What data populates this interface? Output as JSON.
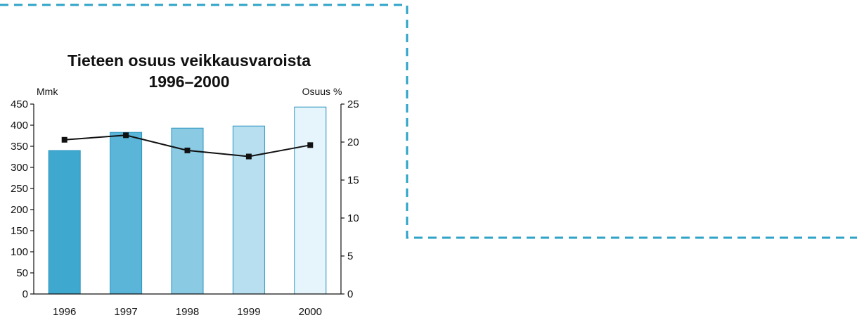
{
  "chart_data": {
    "type": "bar",
    "title_lines": [
      "Tieteen osuus veikkausvaroista",
      "1996–2000"
    ],
    "categories": [
      "1996",
      "1997",
      "1998",
      "1999",
      "2000"
    ],
    "y_left": {
      "label": "Mmk",
      "lim": [
        0,
        450
      ],
      "ticks": [
        0,
        50,
        100,
        150,
        200,
        250,
        300,
        350,
        400,
        450
      ]
    },
    "y_right": {
      "label": "Osuus %",
      "lim": [
        0,
        25
      ],
      "ticks": [
        0,
        5,
        10,
        15,
        20,
        25
      ]
    },
    "series": [
      {
        "type": "bar",
        "axis": "left",
        "values": [
          340,
          383,
          393,
          398,
          443
        ],
        "colors": [
          "#3fa8cf",
          "#5ab5d8",
          "#8bcae3",
          "#b8dff0",
          "#e6f5fb"
        ]
      },
      {
        "type": "line",
        "axis": "right",
        "values": [
          20.3,
          20.9,
          18.9,
          18.1,
          19.6
        ],
        "color": "#111111"
      }
    ],
    "grid": false,
    "legend": "none"
  },
  "decoration": {
    "frame_color": "#2ea3c7"
  }
}
